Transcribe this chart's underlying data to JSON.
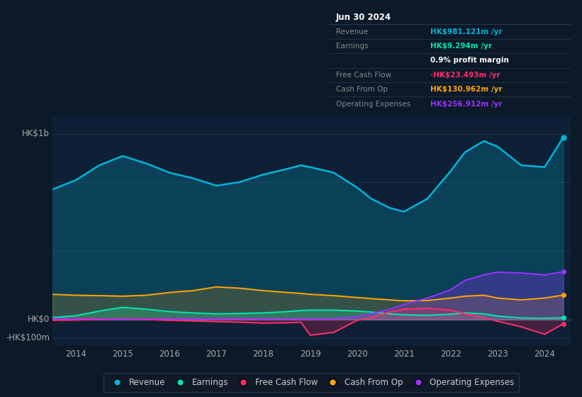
{
  "background_color": "#0b1929",
  "plot_bg_color": "#0d2035",
  "years": [
    2013.5,
    2014.0,
    2014.5,
    2015.0,
    2015.5,
    2016.0,
    2016.5,
    2017.0,
    2017.5,
    2018.0,
    2018.5,
    2018.8,
    2019.0,
    2019.5,
    2020.0,
    2020.3,
    2020.7,
    2021.0,
    2021.5,
    2022.0,
    2022.3,
    2022.7,
    2023.0,
    2023.5,
    2024.0,
    2024.4
  ],
  "revenue": [
    700,
    750,
    830,
    880,
    840,
    790,
    760,
    720,
    740,
    780,
    810,
    830,
    820,
    790,
    710,
    650,
    600,
    580,
    650,
    800,
    900,
    960,
    930,
    830,
    820,
    981
  ],
  "earnings": [
    10,
    20,
    45,
    65,
    55,
    42,
    35,
    30,
    32,
    35,
    42,
    48,
    50,
    50,
    45,
    40,
    30,
    25,
    22,
    28,
    35,
    30,
    18,
    8,
    6,
    9.3
  ],
  "free_cash_flow": [
    -5,
    -3,
    0,
    3,
    0,
    -5,
    -8,
    -12,
    -15,
    -20,
    -18,
    -15,
    -85,
    -70,
    -5,
    10,
    40,
    55,
    60,
    50,
    30,
    10,
    -10,
    -40,
    -80,
    -23.5
  ],
  "cash_from_op": [
    135,
    130,
    128,
    125,
    130,
    145,
    155,
    175,
    168,
    155,
    145,
    140,
    135,
    128,
    118,
    112,
    105,
    100,
    102,
    115,
    125,
    130,
    115,
    105,
    115,
    131
  ],
  "operating_expenses": [
    4,
    4,
    4,
    4,
    4,
    4,
    4,
    4,
    4,
    4,
    4,
    4,
    4,
    4,
    15,
    30,
    55,
    80,
    115,
    160,
    210,
    240,
    255,
    250,
    240,
    257
  ],
  "ylabel_top": "HK$1b",
  "ylabel_zero": "HK$0",
  "ylabel_neg": "-HK$100m",
  "xlim": [
    2013.5,
    2024.55
  ],
  "ylim": [
    -140,
    1100
  ],
  "zero_y": 0,
  "grid_lines": [
    -100,
    0,
    370,
    740,
    1000
  ],
  "xtick_years": [
    2014,
    2015,
    2016,
    2017,
    2018,
    2019,
    2020,
    2021,
    2022,
    2023,
    2024
  ],
  "revenue_color": "#00b4d8",
  "earnings_color": "#00e5b0",
  "fcf_color": "#ff2d6b",
  "cashop_color": "#ffa500",
  "opex_color": "#9b30ff",
  "tooltip_date": "Jun 30 2024",
  "tooltip_rows": [
    {
      "label": "Revenue",
      "value": "HK$981.121m /yr",
      "label_color": "#888888",
      "value_color": "#00b4d8"
    },
    {
      "label": "Earnings",
      "value": "HK$9.294m /yr",
      "label_color": "#888888",
      "value_color": "#00e5b0"
    },
    {
      "label": "",
      "value": "0.9% profit margin",
      "label_color": "#ffffff",
      "value_color": "#ffffff"
    },
    {
      "label": "Free Cash Flow",
      "value": "-HK$23.493m /yr",
      "label_color": "#888888",
      "value_color": "#ff2d6b"
    },
    {
      "label": "Cash From Op",
      "value": "HK$130.962m /yr",
      "label_color": "#888888",
      "value_color": "#ffa500"
    },
    {
      "label": "Operating Expenses",
      "value": "HK$256.912m /yr",
      "label_color": "#888888",
      "value_color": "#9b30ff"
    }
  ],
  "legend_labels": [
    "Revenue",
    "Earnings",
    "Free Cash Flow",
    "Cash From Op",
    "Operating Expenses"
  ],
  "legend_colors": [
    "#00b4d8",
    "#00e5b0",
    "#ff2d6b",
    "#ffa500",
    "#9b30ff"
  ]
}
